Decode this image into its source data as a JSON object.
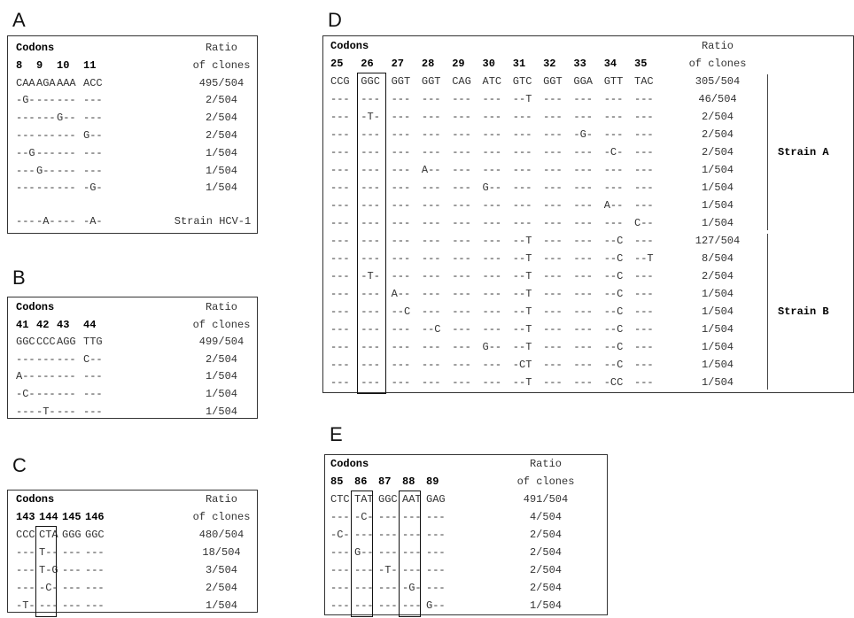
{
  "panels": [
    {
      "id": "A",
      "codons_label": "Codons",
      "ratio_label": [
        "Ratio",
        "of clones"
      ],
      "codon_numbers": [
        "8",
        "9",
        "10",
        "11"
      ],
      "rows": [
        {
          "codons": [
            "CAA",
            "AGA",
            "AAA",
            "ACC"
          ],
          "ratio": "495/504"
        },
        {
          "codons": [
            "-G-",
            "---",
            "---",
            "---"
          ],
          "ratio": "2/504"
        },
        {
          "codons": [
            "---",
            "---",
            "G--",
            "---"
          ],
          "ratio": "2/504"
        },
        {
          "codons": [
            "---",
            "---",
            "---",
            "G--"
          ],
          "ratio": "2/504"
        },
        {
          "codons": [
            "--G",
            "---",
            "---",
            "---"
          ],
          "ratio": "1/504"
        },
        {
          "codons": [
            "---",
            "G--",
            "---",
            "---"
          ],
          "ratio": "1/504"
        },
        {
          "codons": [
            "---",
            "---",
            "---",
            "-G-"
          ],
          "ratio": "1/504"
        }
      ],
      "reference_row": {
        "codons": [
          "---",
          "-A-",
          "---",
          "-A-"
        ],
        "label": "Strain HCV-1"
      }
    },
    {
      "id": "B",
      "codons_label": "Codons",
      "ratio_label": [
        "Ratio",
        "of clones"
      ],
      "codon_numbers": [
        "41",
        "42",
        "43",
        "44"
      ],
      "rows": [
        {
          "codons": [
            "GGC",
            "CCC",
            "AGG",
            "TTG"
          ],
          "ratio": "499/504"
        },
        {
          "codons": [
            "---",
            "---",
            "---",
            "C--"
          ],
          "ratio": "2/504"
        },
        {
          "codons": [
            "A--",
            "---",
            "---",
            "---"
          ],
          "ratio": "1/504"
        },
        {
          "codons": [
            "-C-",
            "---",
            "---",
            "---"
          ],
          "ratio": "1/504"
        },
        {
          "codons": [
            "---",
            "-T-",
            "---",
            "---"
          ],
          "ratio": "1/504"
        }
      ]
    },
    {
      "id": "C",
      "codons_label": "Codons",
      "ratio_label": [
        "Ratio",
        "of clones"
      ],
      "codon_numbers": [
        "143",
        "144",
        "145",
        "146"
      ],
      "rows": [
        {
          "codons": [
            "CCC",
            "CTA",
            "GGG",
            "GGC"
          ],
          "ratio": "480/504"
        },
        {
          "codons": [
            "---",
            "T--",
            "---",
            "---"
          ],
          "ratio": "18/504"
        },
        {
          "codons": [
            "---",
            "T-G",
            "---",
            "---"
          ],
          "ratio": "3/504"
        },
        {
          "codons": [
            "---",
            "-C-",
            "---",
            "---"
          ],
          "ratio": "2/504"
        },
        {
          "codons": [
            "-T-",
            "---",
            "---",
            "---"
          ],
          "ratio": "1/504"
        }
      ]
    },
    {
      "id": "D",
      "codons_label": "Codons",
      "ratio_label": [
        "Ratio",
        "of clones"
      ],
      "codon_numbers": [
        "25",
        "26",
        "27",
        "28",
        "29",
        "30",
        "31",
        "32",
        "33",
        "34",
        "35"
      ],
      "rows": [
        {
          "codons": [
            "CCG",
            "GGC",
            "GGT",
            "GGT",
            "CAG",
            "ATC",
            "GTC",
            "GGT",
            "GGA",
            "GTT",
            "TAC"
          ],
          "ratio": "305/504"
        },
        {
          "codons": [
            "---",
            "---",
            "---",
            "---",
            "---",
            "---",
            "--T",
            "---",
            "---",
            "---",
            "---"
          ],
          "ratio": "46/504"
        },
        {
          "codons": [
            "---",
            "-T-",
            "---",
            "---",
            "---",
            "---",
            "---",
            "---",
            "---",
            "---",
            "---"
          ],
          "ratio": "2/504"
        },
        {
          "codons": [
            "---",
            "---",
            "---",
            "---",
            "---",
            "---",
            "---",
            "---",
            "-G-",
            "---",
            "---"
          ],
          "ratio": "2/504"
        },
        {
          "codons": [
            "---",
            "---",
            "---",
            "---",
            "---",
            "---",
            "---",
            "---",
            "---",
            "-C-",
            "---"
          ],
          "ratio": "2/504"
        },
        {
          "codons": [
            "---",
            "---",
            "---",
            "A--",
            "---",
            "---",
            "---",
            "---",
            "---",
            "---",
            "---"
          ],
          "ratio": "1/504"
        },
        {
          "codons": [
            "---",
            "---",
            "---",
            "---",
            "---",
            "G--",
            "---",
            "---",
            "---",
            "---",
            "---"
          ],
          "ratio": "1/504"
        },
        {
          "codons": [
            "---",
            "---",
            "---",
            "---",
            "---",
            "---",
            "---",
            "---",
            "---",
            "A--",
            "---"
          ],
          "ratio": "1/504"
        },
        {
          "codons": [
            "---",
            "---",
            "---",
            "---",
            "---",
            "---",
            "---",
            "---",
            "---",
            "---",
            "C--"
          ],
          "ratio": "1/504"
        },
        {
          "codons": [
            "---",
            "---",
            "---",
            "---",
            "---",
            "---",
            "--T",
            "---",
            "---",
            "--C",
            "---"
          ],
          "ratio": "127/504"
        },
        {
          "codons": [
            "---",
            "---",
            "---",
            "---",
            "---",
            "---",
            "--T",
            "---",
            "---",
            "--C",
            "--T"
          ],
          "ratio": "8/504"
        },
        {
          "codons": [
            "---",
            "-T-",
            "---",
            "---",
            "---",
            "---",
            "--T",
            "---",
            "---",
            "--C",
            "---"
          ],
          "ratio": "2/504"
        },
        {
          "codons": [
            "---",
            "---",
            "A--",
            "---",
            "---",
            "---",
            "--T",
            "---",
            "---",
            "--C",
            "---"
          ],
          "ratio": "1/504"
        },
        {
          "codons": [
            "---",
            "---",
            "--C",
            "---",
            "---",
            "---",
            "--T",
            "---",
            "---",
            "--C",
            "---"
          ],
          "ratio": "1/504"
        },
        {
          "codons": [
            "---",
            "---",
            "---",
            "--C",
            "---",
            "---",
            "--T",
            "---",
            "---",
            "--C",
            "---"
          ],
          "ratio": "1/504"
        },
        {
          "codons": [
            "---",
            "---",
            "---",
            "---",
            "---",
            "G--",
            "--T",
            "---",
            "---",
            "--C",
            "---"
          ],
          "ratio": "1/504"
        },
        {
          "codons": [
            "---",
            "---",
            "---",
            "---",
            "---",
            "---",
            "-CT",
            "---",
            "---",
            "--C",
            "---"
          ],
          "ratio": "1/504"
        },
        {
          "codons": [
            "---",
            "---",
            "---",
            "---",
            "---",
            "---",
            "--T",
            "---",
            "---",
            "-CC",
            "---"
          ],
          "ratio": "1/504"
        }
      ],
      "strains": [
        "Strain A",
        "Strain B"
      ]
    },
    {
      "id": "E",
      "codons_label": "Codons",
      "ratio_label": [
        "Ratio",
        "of clones"
      ],
      "codon_numbers": [
        "85",
        "86",
        "87",
        "88",
        "89"
      ],
      "rows": [
        {
          "codons": [
            "CTC",
            "TAT",
            "GGC",
            "AAT",
            "GAG"
          ],
          "ratio": "491/504"
        },
        {
          "codons": [
            "---",
            "-C-",
            "---",
            "---",
            "---"
          ],
          "ratio": "4/504"
        },
        {
          "codons": [
            "-C-",
            "---",
            "---",
            "---",
            "---"
          ],
          "ratio": "2/504"
        },
        {
          "codons": [
            "---",
            "G--",
            "---",
            "---",
            "---"
          ],
          "ratio": "2/504"
        },
        {
          "codons": [
            "---",
            "---",
            "-T-",
            "---",
            "---"
          ],
          "ratio": "2/504"
        },
        {
          "codons": [
            "---",
            "---",
            "---",
            "-G-",
            "---"
          ],
          "ratio": "2/504"
        },
        {
          "codons": [
            "---",
            "---",
            "---",
            "---",
            "G--"
          ],
          "ratio": "1/504"
        }
      ]
    }
  ]
}
